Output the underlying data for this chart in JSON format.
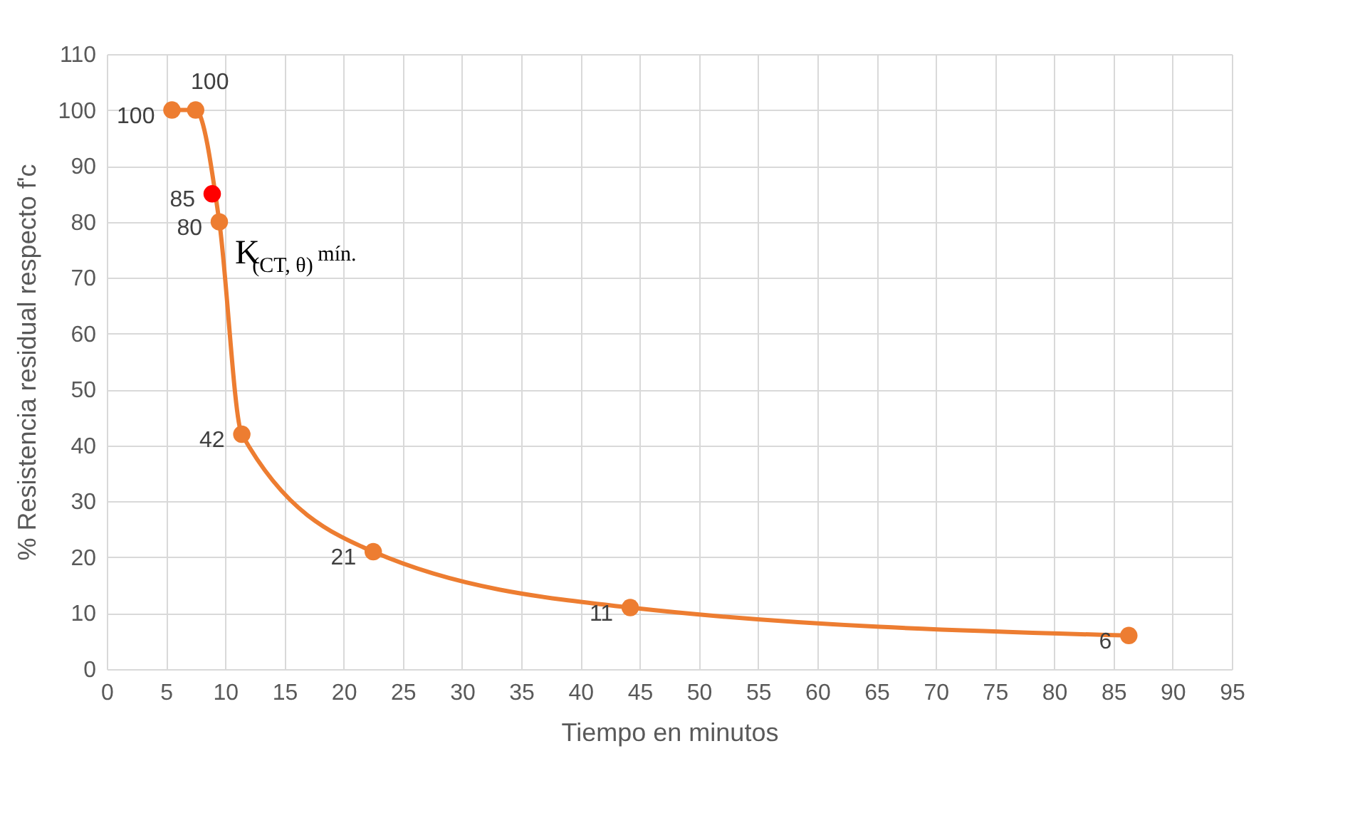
{
  "chart_data": {
    "type": "line",
    "xlabel": "Tiempo en minutos",
    "ylabel": "% Resistencia residual respecto f'c",
    "series": [
      {
        "color": "#ed7d31",
        "x": [
          5.5,
          7.5,
          9.5,
          11.4,
          22.5,
          44.2,
          86.3
        ],
        "values": [
          100,
          100,
          80,
          42,
          21,
          11,
          6
        ]
      },
      {
        "type": "scatter",
        "color": "#ff0000",
        "x": [
          8.9
        ],
        "values": [
          85
        ]
      }
    ],
    "xlim": [
      0,
      95
    ],
    "xticks": [
      0,
      5,
      10,
      15,
      20,
      25,
      30,
      35,
      40,
      45,
      50,
      55,
      60,
      65,
      70,
      75,
      80,
      85,
      90,
      95
    ],
    "ylim": [
      0,
      110
    ],
    "yticks": [
      0,
      10,
      20,
      30,
      40,
      50,
      60,
      70,
      80,
      90,
      100,
      110
    ],
    "grid": true,
    "marker": "circle",
    "data_labels": true,
    "annotations": [
      "K$_{(CT, θ)}$ mín."
    ]
  }
}
